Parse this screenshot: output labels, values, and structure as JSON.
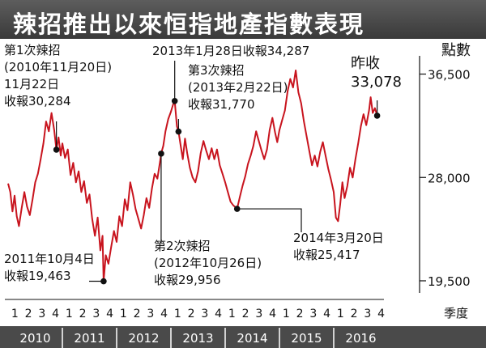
{
  "chart_data": {
    "type": "line",
    "title": "辣招推出以來恒指地產指數表現",
    "ylabel": "點數",
    "xlabel": "季度",
    "ylim": [
      18500,
      38000
    ],
    "yticks": [
      "36,500",
      "28,000",
      "19,500"
    ],
    "ytick_values": [
      36500,
      28000,
      19500
    ],
    "quarter_labels": [
      "1",
      "2",
      "3",
      "4",
      "1",
      "2",
      "3",
      "4",
      "1",
      "2",
      "3",
      "4",
      "1",
      "2",
      "3",
      "4",
      "1",
      "2",
      "3",
      "4",
      "1",
      "2",
      "3",
      "4",
      "1",
      "2",
      "3",
      "4"
    ],
    "years": [
      "2010",
      "2011",
      "2012",
      "2013",
      "2014",
      "2015",
      "2016"
    ],
    "series": [
      {
        "values": [
          [
            2010.0,
            27500
          ],
          [
            2010.04,
            26800
          ],
          [
            2010.08,
            25200
          ],
          [
            2010.12,
            26500
          ],
          [
            2010.16,
            24800
          ],
          [
            2010.2,
            24000
          ],
          [
            2010.25,
            25500
          ],
          [
            2010.3,
            26800
          ],
          [
            2010.35,
            25600
          ],
          [
            2010.4,
            24900
          ],
          [
            2010.45,
            26200
          ],
          [
            2010.5,
            27600
          ],
          [
            2010.55,
            28300
          ],
          [
            2010.6,
            29500
          ],
          [
            2010.65,
            30800
          ],
          [
            2010.7,
            32600
          ],
          [
            2010.75,
            31800
          ],
          [
            2010.8,
            33300
          ],
          [
            2010.85,
            31900
          ],
          [
            2010.89,
            30284
          ],
          [
            2010.93,
            31300
          ],
          [
            2010.97,
            29800
          ],
          [
            2011.0,
            30800
          ],
          [
            2011.05,
            29600
          ],
          [
            2011.1,
            30300
          ],
          [
            2011.15,
            28200
          ],
          [
            2011.2,
            29200
          ],
          [
            2011.25,
            27600
          ],
          [
            2011.3,
            28500
          ],
          [
            2011.35,
            26800
          ],
          [
            2011.4,
            27700
          ],
          [
            2011.45,
            25900
          ],
          [
            2011.5,
            26600
          ],
          [
            2011.55,
            24600
          ],
          [
            2011.6,
            23200
          ],
          [
            2011.65,
            24700
          ],
          [
            2011.7,
            22000
          ],
          [
            2011.74,
            23200
          ],
          [
            2011.76,
            19463
          ],
          [
            2011.8,
            21600
          ],
          [
            2011.85,
            20900
          ],
          [
            2011.9,
            22300
          ],
          [
            2011.95,
            23600
          ],
          [
            2012.0,
            22700
          ],
          [
            2012.05,
            24800
          ],
          [
            2012.1,
            24000
          ],
          [
            2012.15,
            26200
          ],
          [
            2012.2,
            25300
          ],
          [
            2012.25,
            27600
          ],
          [
            2012.3,
            26600
          ],
          [
            2012.35,
            25400
          ],
          [
            2012.4,
            24600
          ],
          [
            2012.45,
            23800
          ],
          [
            2012.5,
            24900
          ],
          [
            2012.55,
            26300
          ],
          [
            2012.6,
            25500
          ],
          [
            2012.65,
            27100
          ],
          [
            2012.7,
            28300
          ],
          [
            2012.75,
            27900
          ],
          [
            2012.8,
            29300
          ],
          [
            2012.82,
            29956
          ],
          [
            2012.86,
            30600
          ],
          [
            2012.9,
            31800
          ],
          [
            2012.95,
            32800
          ],
          [
            2013.0,
            33400
          ],
          [
            2013.04,
            34000
          ],
          [
            2013.07,
            34287
          ],
          [
            2013.11,
            32200
          ],
          [
            2013.14,
            31770
          ],
          [
            2013.18,
            30600
          ],
          [
            2013.22,
            29500
          ],
          [
            2013.26,
            31200
          ],
          [
            2013.3,
            30000
          ],
          [
            2013.35,
            28800
          ],
          [
            2013.4,
            28000
          ],
          [
            2013.45,
            27600
          ],
          [
            2013.5,
            28500
          ],
          [
            2013.55,
            30000
          ],
          [
            2013.6,
            31000
          ],
          [
            2013.65,
            30200
          ],
          [
            2013.7,
            29500
          ],
          [
            2013.75,
            30400
          ],
          [
            2013.8,
            29500
          ],
          [
            2013.85,
            30300
          ],
          [
            2013.9,
            29000
          ],
          [
            2013.95,
            28300
          ],
          [
            2014.0,
            27600
          ],
          [
            2014.05,
            26800
          ],
          [
            2014.1,
            26000
          ],
          [
            2014.15,
            25700
          ],
          [
            2014.2,
            25500
          ],
          [
            2014.22,
            25417
          ],
          [
            2014.27,
            26400
          ],
          [
            2014.32,
            27300
          ],
          [
            2014.37,
            28100
          ],
          [
            2014.42,
            29100
          ],
          [
            2014.47,
            29800
          ],
          [
            2014.52,
            30600
          ],
          [
            2014.57,
            31800
          ],
          [
            2014.62,
            31000
          ],
          [
            2014.67,
            30200
          ],
          [
            2014.72,
            29500
          ],
          [
            2014.77,
            30300
          ],
          [
            2014.82,
            31900
          ],
          [
            2014.87,
            32900
          ],
          [
            2014.92,
            31700
          ],
          [
            2014.96,
            30900
          ],
          [
            2015.0,
            31900
          ],
          [
            2015.05,
            32700
          ],
          [
            2015.1,
            33500
          ],
          [
            2015.15,
            35100
          ],
          [
            2015.2,
            36100
          ],
          [
            2015.25,
            35400
          ],
          [
            2015.3,
            36800
          ],
          [
            2015.35,
            35000
          ],
          [
            2015.4,
            34100
          ],
          [
            2015.45,
            32600
          ],
          [
            2015.5,
            31400
          ],
          [
            2015.55,
            30200
          ],
          [
            2015.6,
            29000
          ],
          [
            2015.65,
            29800
          ],
          [
            2015.7,
            28900
          ],
          [
            2015.75,
            30100
          ],
          [
            2015.8,
            30900
          ],
          [
            2015.85,
            29800
          ],
          [
            2015.9,
            28700
          ],
          [
            2015.95,
            27800
          ],
          [
            2016.0,
            26800
          ],
          [
            2016.04,
            24700
          ],
          [
            2016.08,
            24400
          ],
          [
            2016.12,
            25800
          ],
          [
            2016.16,
            27600
          ],
          [
            2016.2,
            26300
          ],
          [
            2016.25,
            27300
          ],
          [
            2016.3,
            28800
          ],
          [
            2016.35,
            28000
          ],
          [
            2016.4,
            29500
          ],
          [
            2016.45,
            30800
          ],
          [
            2016.5,
            32200
          ],
          [
            2016.55,
            33200
          ],
          [
            2016.6,
            32300
          ],
          [
            2016.65,
            33500
          ],
          [
            2016.68,
            34600
          ],
          [
            2016.72,
            33300
          ],
          [
            2016.76,
            33700
          ],
          [
            2016.8,
            33078
          ]
        ]
      }
    ],
    "annotations": [
      {
        "text": [
          "第1次辣招",
          "(2010年11月20日)",
          "11月22日",
          "收報30,284"
        ],
        "x": 2010.89,
        "y": 30284
      },
      {
        "text": [
          "2011年10月4日",
          "收報19,463"
        ],
        "x": 2011.76,
        "y": 19463
      },
      {
        "text": [
          "第2次辣招",
          "(2012年10月26日)",
          "收報29,956"
        ],
        "x": 2012.82,
        "y": 29956
      },
      {
        "text": [
          "2013年1月28日收報34,287"
        ],
        "x": 2013.07,
        "y": 34287
      },
      {
        "text": [
          "第3次辣招",
          "(2013年2月22日)",
          "收報31,770"
        ],
        "x": 2013.14,
        "y": 31770
      },
      {
        "text": [
          "2014年3月20日",
          "收報25,417"
        ],
        "x": 2014.22,
        "y": 25417
      },
      {
        "text": [
          "昨收",
          "33,078"
        ],
        "x": 2016.8,
        "y": 33078
      }
    ]
  }
}
